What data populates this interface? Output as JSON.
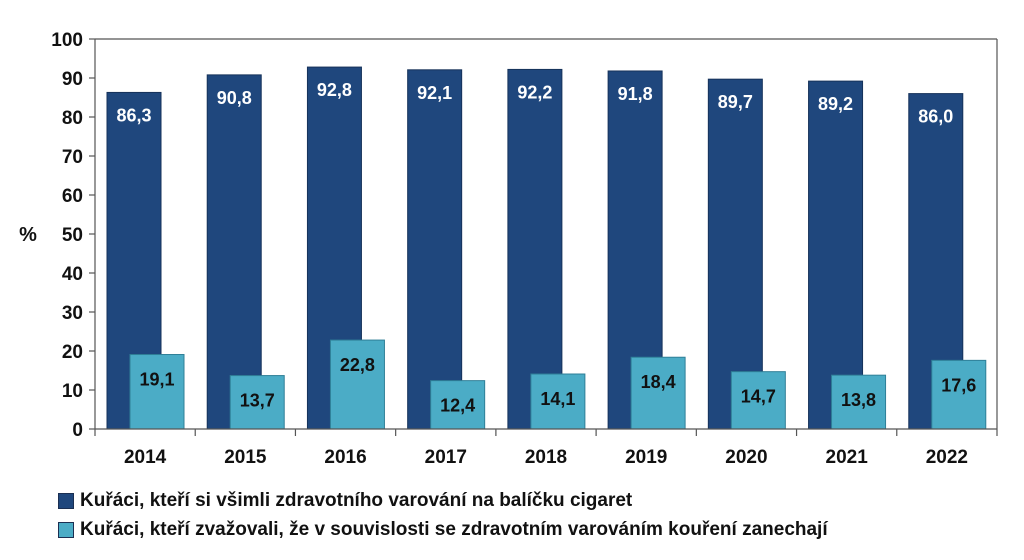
{
  "chart_data": {
    "type": "bar",
    "categories": [
      "2014",
      "2015",
      "2016",
      "2017",
      "2018",
      "2019",
      "2020",
      "2021",
      "2022"
    ],
    "series": [
      {
        "name": "Kuřáci, kteří si všimli zdravotního varování na balíčku cigaret",
        "values": [
          86.3,
          90.8,
          92.8,
          92.1,
          92.2,
          91.8,
          89.7,
          89.2,
          86.0
        ],
        "labels": [
          "86,3",
          "90,8",
          "92,8",
          "92,1",
          "92,2",
          "91,8",
          "89,7",
          "89,2",
          "86,0"
        ],
        "color": "#1f477d"
      },
      {
        "name": "Kuřáci, kteří zvažovali, že v souvislosti se zdravotním varováním kouření zanechají",
        "values": [
          19.1,
          13.7,
          22.8,
          12.4,
          14.1,
          18.4,
          14.7,
          13.8,
          17.6
        ],
        "labels": [
          "19,1",
          "13,7",
          "22,8",
          "12,4",
          "14,1",
          "18,4",
          "14,7",
          "13,8",
          "17,6"
        ],
        "color": "#4bacc6"
      }
    ],
    "ylabel": "%",
    "ylim": [
      0,
      100
    ],
    "yticks": [
      "0",
      "10",
      "20",
      "30",
      "40",
      "50",
      "60",
      "70",
      "80",
      "90",
      "100"
    ],
    "grid": false,
    "legend": "bottom"
  }
}
